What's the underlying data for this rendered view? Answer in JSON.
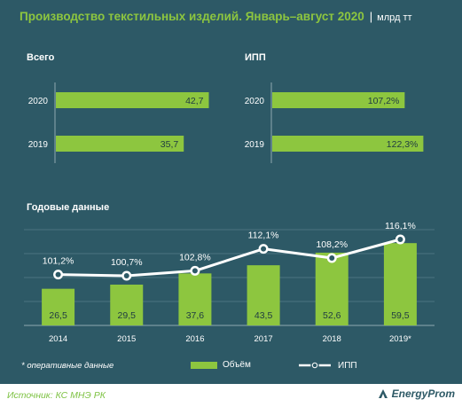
{
  "header": {
    "title": "Производство текстильных изделий. Январь–август 2020",
    "separator": "|",
    "unit": "млрд тт"
  },
  "sections": {
    "total_label": "Всего",
    "ipp_label": "ИПП",
    "annual_label": "Годовые данные"
  },
  "footnote": "* оперативные данные",
  "legend": {
    "volume": "Объём",
    "ipp": "ИПП"
  },
  "footer": {
    "source": "Источник: КС МНЭ РК",
    "brand": "EnergyProm"
  },
  "colors": {
    "background": "#2d5966",
    "bar": "#8dc63f",
    "line": "#ffffff",
    "title": "#8dc63f"
  },
  "chart_data": [
    {
      "type": "bar",
      "orientation": "horizontal",
      "title": "Всего",
      "categories": [
        "2020",
        "2019"
      ],
      "values": [
        42.7,
        35.7
      ],
      "value_labels": [
        "42,7",
        "35,7"
      ],
      "xlim": [
        0,
        50
      ]
    },
    {
      "type": "bar",
      "orientation": "horizontal",
      "title": "ИПП",
      "categories": [
        "2020",
        "2019"
      ],
      "values": [
        107.2,
        122.3
      ],
      "value_labels": [
        "107,2%",
        "122,3%"
      ],
      "xlim": [
        0,
        150
      ]
    },
    {
      "type": "bar",
      "title": "Годовые данные",
      "categories": [
        "2014",
        "2015",
        "2016",
        "2017",
        "2018",
        "2019*"
      ],
      "series": [
        {
          "name": "Объём",
          "type": "bar",
          "values": [
            26.5,
            29.5,
            37.6,
            43.5,
            52.6,
            59.5
          ],
          "value_labels": [
            "26,5",
            "29,5",
            "37,6",
            "43,5",
            "52,6",
            "59,5"
          ]
        },
        {
          "name": "ИПП",
          "type": "line",
          "values": [
            101.2,
            100.7,
            102.8,
            112.1,
            108.2,
            116.1
          ],
          "value_labels": [
            "101,2%",
            "100,7%",
            "102,8%",
            "112,1%",
            "108,2%",
            "116,1%"
          ]
        }
      ],
      "bar_ylim": [
        0,
        75
      ],
      "line_ylim": [
        80,
        120
      ],
      "grid": true,
      "legend": "bottom"
    }
  ]
}
